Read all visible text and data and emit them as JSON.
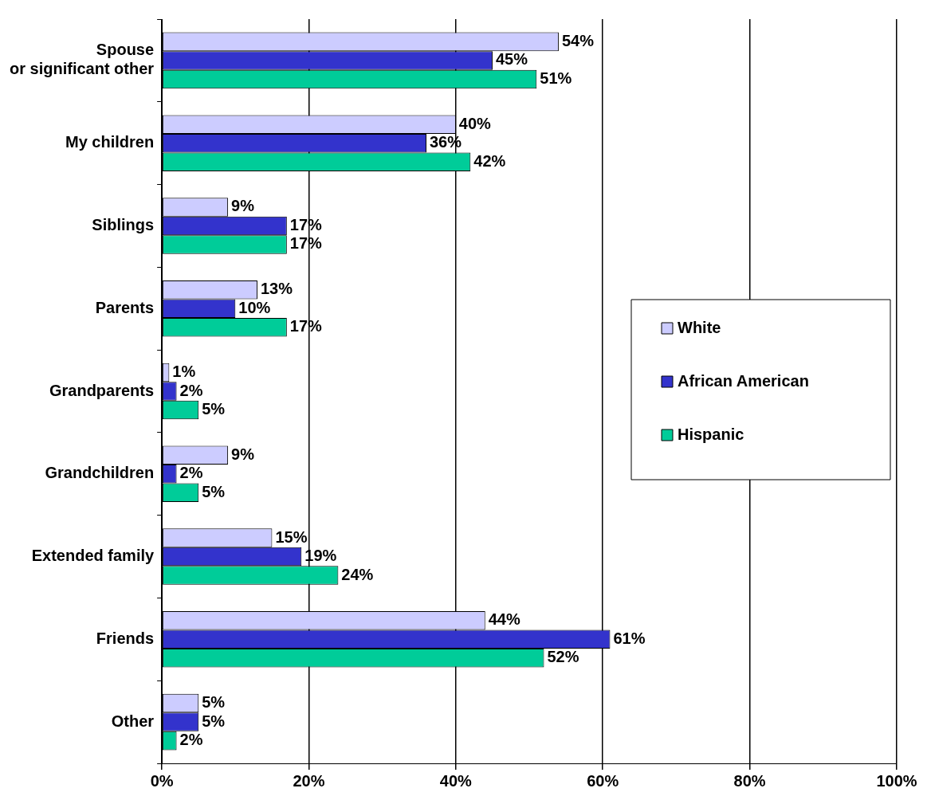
{
  "chart_data": {
    "type": "bar",
    "orientation": "horizontal",
    "categories": [
      "Spouse or significant other",
      "My children",
      "Siblings",
      "Parents",
      "Grandparents",
      "Grandchildren",
      "Extended family",
      "Friends",
      "Other"
    ],
    "series": [
      {
        "name": "White",
        "color": "#ccccff",
        "values": [
          54,
          40,
          9,
          13,
          1,
          9,
          15,
          44,
          5
        ],
        "value_labels": [
          "54%",
          "40%",
          "9%",
          "13%",
          "1%",
          "9%",
          "15%",
          "44%",
          "5%"
        ]
      },
      {
        "name": "African American",
        "color": "#3333cc",
        "values": [
          45,
          36,
          17,
          10,
          2,
          2,
          19,
          61,
          5
        ],
        "value_labels": [
          "45%",
          "36%",
          "17%",
          "10%",
          "2%",
          "2%",
          "19%",
          "61%",
          "5%"
        ]
      },
      {
        "name": "Hispanic",
        "color": "#00cc99",
        "values": [
          51,
          42,
          17,
          17,
          5,
          5,
          24,
          52,
          2
        ],
        "value_labels": [
          "51%",
          "42%",
          "17%",
          "17%",
          "5%",
          "5%",
          "24%",
          "52%",
          "2%"
        ]
      }
    ],
    "xlim": [
      0,
      100
    ],
    "xticks": [
      {
        "value": 0,
        "label": "0%"
      },
      {
        "value": 20,
        "label": "20%"
      },
      {
        "value": 40,
        "label": "40%"
      },
      {
        "value": 60,
        "label": "60%"
      },
      {
        "value": 80,
        "label": "80%"
      },
      {
        "value": 100,
        "label": "100%"
      }
    ],
    "grid": "x",
    "legend": "right"
  }
}
